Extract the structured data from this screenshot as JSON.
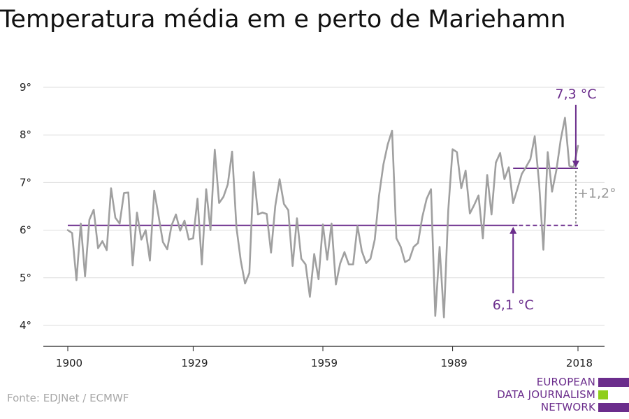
{
  "title": "Temperatura média em e perto de Mariehamn",
  "source": "Fonte: EDJNet / ECMWF",
  "logo": {
    "lines": [
      "EUROPEAN",
      "DATA JOURNALISM",
      "NETWORK"
    ]
  },
  "colors": {
    "series": "#a0a0a0",
    "accent": "#6b2d8c",
    "logo_green": "#8fce1c",
    "grid": "#dddddd",
    "muted": "#9a9a9a"
  },
  "chart_data": {
    "type": "line",
    "title": "Temperatura média em e perto de Mariehamn",
    "xlabel": "",
    "ylabel": "",
    "xlim": [
      1900,
      2018
    ],
    "ylim": [
      4,
      9
    ],
    "x_ticks": [
      1900,
      1929,
      1959,
      1989,
      2018
    ],
    "x_tick_labels": [
      "1900",
      "1929",
      "1959",
      "1989",
      "2018"
    ],
    "y_ticks": [
      4,
      5,
      6,
      7,
      8,
      9
    ],
    "y_tick_labels": [
      "4°",
      "5°",
      "6°",
      "7°",
      "8°",
      "9°"
    ],
    "grid": true,
    "series": [
      {
        "x_start": 1900,
        "values": [
          6.0,
          5.94,
          4.95,
          6.14,
          5.03,
          6.22,
          6.43,
          5.62,
          5.77,
          5.58,
          6.88,
          6.26,
          6.14,
          6.78,
          6.79,
          5.26,
          6.37,
          5.8,
          6.0,
          5.36,
          6.83,
          6.3,
          5.75,
          5.6,
          6.1,
          6.33,
          5.99,
          6.2,
          5.8,
          5.83,
          6.66,
          5.28,
          6.86,
          6.0,
          7.69,
          6.57,
          6.7,
          6.96,
          7.65,
          6.06,
          5.36,
          4.88,
          5.1,
          7.22,
          6.33,
          6.37,
          6.34,
          5.53,
          6.51,
          7.07,
          6.55,
          6.42,
          5.25,
          6.25,
          5.4,
          5.28,
          4.6,
          5.5,
          4.97,
          6.12,
          5.38,
          6.14,
          4.86,
          5.3,
          5.54,
          5.28,
          5.28,
          6.09,
          5.56,
          5.31,
          5.4,
          5.8,
          6.73,
          7.38,
          7.8,
          8.09,
          5.83,
          5.65,
          5.33,
          5.38,
          5.65,
          5.73,
          6.28,
          6.66,
          6.86,
          4.2,
          5.65,
          4.17,
          6.42,
          7.7,
          7.64,
          6.88,
          7.25,
          6.35,
          6.53,
          6.73,
          5.83,
          7.16,
          6.33,
          7.42,
          7.62,
          7.07,
          7.32,
          6.57,
          6.87,
          7.18,
          7.33,
          7.49,
          7.97,
          7.0,
          5.59,
          7.64,
          6.81,
          7.26,
          7.9,
          8.36,
          7.35,
          7.32,
          7.77
        ]
      }
    ],
    "reference_lines": [
      {
        "from": 1900,
        "to": 2018,
        "value": 6.1,
        "label": "6,1 °C"
      },
      {
        "from": 2003,
        "to": 2018,
        "value": 7.3,
        "label": "7,3 °C"
      }
    ],
    "difference_label": "+1,2°"
  }
}
